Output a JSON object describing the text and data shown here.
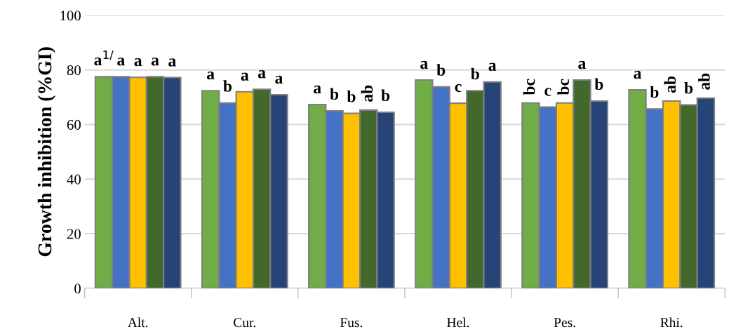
{
  "chart_data": {
    "type": "bar",
    "ylabel": "Growth inhibition (%GI)",
    "categories": [
      "Alt.",
      "Cur.",
      "Fus.",
      "Hel.",
      "Pes.",
      "Rhi."
    ],
    "series": [
      {
        "color": "#70ad47",
        "values": [
          77.5,
          72.4,
          67.3,
          76.3,
          67.9,
          72.7
        ]
      },
      {
        "color": "#4472c4",
        "values": [
          77.5,
          67.9,
          65.0,
          73.8,
          66.4,
          65.7
        ]
      },
      {
        "color": "#ffc000",
        "values": [
          77.3,
          72.0,
          64.1,
          67.8,
          67.9,
          68.6
        ]
      },
      {
        "color": "#43682b",
        "values": [
          77.5,
          72.9,
          65.3,
          72.4,
          76.3,
          67.2
        ]
      },
      {
        "color": "#264478",
        "values": [
          77.2,
          70.9,
          64.5,
          75.6,
          68.6,
          69.7
        ]
      }
    ],
    "annotations": [
      "a$^{1/}$",
      "a",
      "a",
      "a",
      "a",
      "a",
      "b",
      "a",
      "a",
      "a",
      "a",
      "b",
      "b",
      "ab",
      "b",
      "a",
      "b",
      "c",
      "b",
      "a",
      "bc",
      "c",
      "bc",
      "a",
      "b",
      "a",
      "b",
      "ab",
      "b",
      "ab"
    ],
    "ylim": [
      0,
      100
    ],
    "yticks": [
      0,
      20,
      40,
      60,
      80,
      100
    ],
    "grid": "y",
    "legend": false
  }
}
